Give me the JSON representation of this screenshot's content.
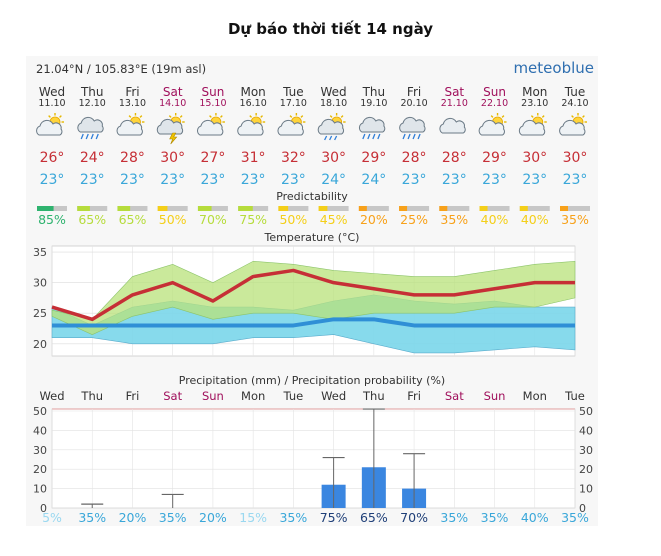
{
  "page": {
    "title": "Dự báo thời tiết 14 ngày"
  },
  "header": {
    "location": "21.04°N / 105.83°E (19m asl)",
    "brand": "meteoblue"
  },
  "colors": {
    "tmax": "#c62f36",
    "tmin": "#3aa7d9",
    "weekend": "#a0105c",
    "rain": "#3a86e0",
    "band_warm": "#b8e27a",
    "band_cool": "#7ad6ea",
    "band_overlap": "#6cc48a",
    "predict_colors": [
      "#2fb36f",
      "#b6dc3c",
      "#f4cf19",
      "#f7a11a"
    ]
  },
  "days": [
    {
      "day": "Wed",
      "date": "11.10",
      "weekend": false,
      "icon": "sun-cloud-icon",
      "tmax": "26°",
      "tmin": "23°",
      "pred": "85%",
      "pcolor": 0
    },
    {
      "day": "Thu",
      "date": "12.10",
      "weekend": false,
      "icon": "rain-cloud-icon",
      "tmax": "24°",
      "tmin": "23°",
      "pred": "65%",
      "pcolor": 1
    },
    {
      "day": "Fri",
      "date": "13.10",
      "weekend": false,
      "icon": "sun-cloud-icon",
      "tmax": "28°",
      "tmin": "23°",
      "pred": "65%",
      "pcolor": 1
    },
    {
      "day": "Sat",
      "date": "14.10",
      "weekend": true,
      "icon": "thunder-cloud-icon",
      "tmax": "30°",
      "tmin": "23°",
      "pred": "50%",
      "pcolor": 2
    },
    {
      "day": "Sun",
      "date": "15.10",
      "weekend": true,
      "icon": "sun-cloud-icon",
      "tmax": "27°",
      "tmin": "23°",
      "pred": "70%",
      "pcolor": 1
    },
    {
      "day": "Mon",
      "date": "16.10",
      "weekend": false,
      "icon": "sun-cloud-icon",
      "tmax": "31°",
      "tmin": "23°",
      "pred": "75%",
      "pcolor": 1
    },
    {
      "day": "Tue",
      "date": "17.10",
      "weekend": false,
      "icon": "sun-cloud-icon",
      "tmax": "32°",
      "tmin": "23°",
      "pred": "50%",
      "pcolor": 2
    },
    {
      "day": "Wed",
      "date": "18.10",
      "weekend": false,
      "icon": "sun-rain-icon",
      "tmax": "30°",
      "tmin": "24°",
      "pred": "45%",
      "pcolor": 2
    },
    {
      "day": "Thu",
      "date": "19.10",
      "weekend": false,
      "icon": "rain-cloud-icon",
      "tmax": "29°",
      "tmin": "24°",
      "pred": "20%",
      "pcolor": 3
    },
    {
      "day": "Fri",
      "date": "20.10",
      "weekend": false,
      "icon": "rain-cloud-icon",
      "tmax": "28°",
      "tmin": "23°",
      "pred": "25%",
      "pcolor": 3
    },
    {
      "day": "Sat",
      "date": "21.10",
      "weekend": true,
      "icon": "cloud-icon",
      "tmax": "28°",
      "tmin": "23°",
      "pred": "35%",
      "pcolor": 3
    },
    {
      "day": "Sun",
      "date": "22.10",
      "weekend": true,
      "icon": "sun-cloud-icon",
      "tmax": "29°",
      "tmin": "23°",
      "pred": "40%",
      "pcolor": 2
    },
    {
      "day": "Mon",
      "date": "23.10",
      "weekend": false,
      "icon": "sun-cloud-icon",
      "tmax": "30°",
      "tmin": "23°",
      "pred": "40%",
      "pcolor": 2
    },
    {
      "day": "Tue",
      "date": "24.10",
      "weekend": false,
      "icon": "sun-cloud-icon",
      "tmax": "30°",
      "tmin": "23°",
      "pred": "35%",
      "pcolor": 3
    }
  ],
  "chart_data": [
    {
      "type": "line",
      "title": "Predictability",
      "values": [
        85,
        65,
        65,
        50,
        70,
        75,
        50,
        45,
        20,
        25,
        35,
        40,
        40,
        35
      ]
    },
    {
      "type": "line",
      "title": "Temperature (°C)",
      "ylim": [
        18,
        36
      ],
      "yticks": [
        20,
        25,
        30,
        35
      ],
      "grid": true,
      "series": [
        {
          "values": [
            26,
            24,
            28,
            30,
            27,
            31,
            32,
            30,
            29,
            28,
            28,
            29,
            30,
            30
          ]
        },
        {
          "values": [
            23,
            23,
            23,
            23,
            23,
            23,
            23,
            24,
            24,
            23,
            23,
            23,
            23,
            23
          ]
        }
      ],
      "bands": {
        "warm_upper": [
          25.5,
          24,
          31,
          33,
          30,
          33.5,
          33,
          32,
          31.5,
          31,
          31,
          32,
          33,
          33.5
        ],
        "warm_lower": [
          24.5,
          21.5,
          24.5,
          26,
          24,
          25,
          25,
          24,
          25,
          25,
          25,
          26,
          26,
          27.5
        ],
        "cool_upper": [
          26,
          23,
          26,
          27,
          26,
          26,
          25.5,
          27,
          28,
          27,
          26.5,
          27,
          26,
          26
        ],
        "cool_lower": [
          21,
          21,
          20,
          20,
          20,
          21,
          21,
          21.5,
          20,
          18.5,
          18.5,
          19,
          19.5,
          19
        ]
      }
    },
    {
      "type": "bar",
      "title": "Precipitation (mm) / Precipitation probability (%)",
      "ylim": [
        0,
        50
      ],
      "yticks": [
        0,
        10,
        20,
        30,
        40,
        50
      ],
      "categories": [
        "Wed",
        "Thu",
        "Fri",
        "Sat",
        "Sun",
        "Mon",
        "Tue",
        "Wed",
        "Thu",
        "Fri",
        "Sat",
        "Sun",
        "Mon",
        "Tue"
      ],
      "weekend": [
        false,
        false,
        false,
        true,
        true,
        false,
        false,
        false,
        false,
        false,
        true,
        true,
        false,
        false
      ],
      "values": [
        0,
        0,
        0,
        0,
        0,
        0,
        0,
        12,
        21,
        10,
        0,
        0,
        0,
        0
      ],
      "err_high": [
        0,
        2,
        0,
        7,
        0,
        0,
        0,
        26,
        51,
        28,
        0,
        0,
        0,
        0
      ],
      "probability": [
        "5%",
        "35%",
        "20%",
        "35%",
        "20%",
        "15%",
        "35%",
        "75%",
        "65%",
        "70%",
        "35%",
        "35%",
        "40%",
        "35%"
      ],
      "prob_strength": [
        0,
        1,
        1,
        1,
        1,
        0,
        1,
        2,
        2,
        2,
        1,
        1,
        1,
        1
      ]
    }
  ]
}
